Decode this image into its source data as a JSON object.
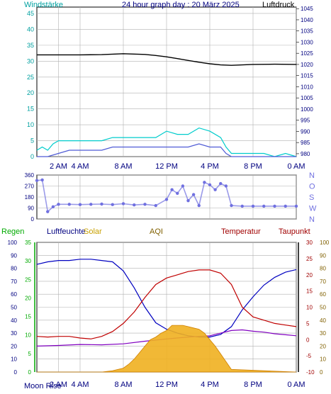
{
  "title": "24 hour graph day : 20 März 2025",
  "chart_data": [
    {
      "id": "wind_pressure",
      "type": "line",
      "left_label": "Windstärke",
      "right_label": "Luftdruck",
      "x_ticks": [
        "2 AM",
        "4 AM",
        "8 AM",
        "12 PM",
        "4 PM",
        "8 PM",
        "0 AM"
      ],
      "x_tick_hours": [
        2,
        4,
        8,
        12,
        16,
        20,
        24
      ],
      "x_range_hours": [
        0,
        24
      ],
      "left_ticks": [
        "0",
        "5",
        "10",
        "15",
        "20",
        "25",
        "30",
        "35",
        "40",
        "45"
      ],
      "left_range": [
        0,
        47
      ],
      "right_ticks": [
        "980",
        "985",
        "990",
        "995",
        "1000",
        "1005",
        "1010",
        "1015",
        "1020",
        "1025",
        "1030",
        "1035",
        "1040",
        "1045"
      ],
      "right_range": [
        978.7,
        1045.7
      ],
      "grid": true,
      "series": [
        {
          "name": "Luftdruck",
          "color": "#000000",
          "axis": "right",
          "x": [
            0,
            2,
            4,
            6,
            8,
            10,
            11,
            12,
            13,
            14,
            15,
            16,
            17,
            18,
            19,
            20,
            22,
            24
          ],
          "y": [
            1024.3,
            1024.3,
            1024.3,
            1024.4,
            1024.8,
            1024.5,
            1024.0,
            1023.4,
            1022.6,
            1021.8,
            1021.0,
            1020.3,
            1019.8,
            1019.6,
            1019.8,
            1020.0,
            1020.1,
            1020.0
          ]
        },
        {
          "name": "Windböen",
          "color": "#00cccc",
          "axis": "left",
          "x": [
            0,
            0.5,
            1,
            1.5,
            2,
            3,
            4,
            5,
            6,
            7,
            8,
            9,
            10,
            11,
            12,
            13,
            14,
            15,
            16,
            17,
            17.5,
            18,
            19,
            20,
            21,
            22,
            23,
            24
          ],
          "y": [
            2,
            3,
            2,
            4,
            5,
            5,
            5,
            5,
            5,
            6,
            6,
            6,
            6,
            6,
            8,
            7,
            7,
            9,
            8,
            6,
            3,
            1,
            1,
            1,
            1,
            0,
            1,
            0
          ]
        },
        {
          "name": "Windgeschwindigkeit",
          "color": "#4f5bd5",
          "axis": "left",
          "x": [
            0,
            1,
            2,
            3,
            4,
            5,
            6,
            7,
            8,
            9,
            10,
            11,
            12,
            13,
            14,
            15,
            16,
            17,
            17.5,
            18,
            24
          ],
          "y": [
            0,
            0,
            1,
            2,
            2,
            2,
            2,
            3,
            3,
            3,
            3,
            3,
            3,
            3,
            3,
            4,
            3,
            3,
            1,
            0,
            0
          ]
        }
      ]
    },
    {
      "id": "wind_direction",
      "type": "scatter",
      "x_range_hours": [
        0,
        24
      ],
      "left_ticks": [
        "0",
        "90",
        "180",
        "270",
        "360"
      ],
      "left_range": [
        0,
        360
      ],
      "right_ticks": [
        "N",
        "W",
        "S",
        "O",
        "N"
      ],
      "grid": true,
      "series": [
        {
          "name": "Windrichtung",
          "color": "#7070e0",
          "x": [
            0,
            0.5,
            1,
            1.5,
            2,
            3,
            4,
            5,
            6,
            7,
            8,
            9,
            10,
            11,
            12,
            12.5,
            13,
            13.5,
            14,
            14.5,
            15,
            15.5,
            16,
            16.5,
            17,
            17.5,
            18,
            19,
            20,
            21,
            22,
            23,
            24
          ],
          "y": [
            315,
            320,
            60,
            100,
            120,
            120,
            118,
            120,
            122,
            118,
            125,
            115,
            120,
            110,
            160,
            240,
            210,
            270,
            150,
            200,
            110,
            300,
            280,
            240,
            290,
            270,
            110,
            105,
            105,
            105,
            105,
            105,
            105
          ]
        }
      ]
    },
    {
      "id": "climate",
      "type": "line",
      "labels": [
        "Regen",
        "Luftfeuchte",
        "Solar",
        "AQI",
        "Temperatur",
        "Taupunkt"
      ],
      "label_colors": [
        "#00aa00",
        "#000080",
        "#c8a000",
        "#806000",
        "#a00000",
        "#8000a0"
      ],
      "moon_label": "Moon Rise",
      "x_ticks": [
        "2 AM",
        "4 AM",
        "8 AM",
        "12 PM",
        "4 PM",
        "8 PM",
        "0 AM"
      ],
      "x_tick_hours": [
        2,
        4,
        8,
        12,
        16,
        20,
        24
      ],
      "x_range_hours": [
        0,
        24
      ],
      "humidity_ticks": [
        "0",
        "10",
        "20",
        "30",
        "40",
        "50",
        "60",
        "70",
        "80",
        "90",
        "100"
      ],
      "rain_ticks": [
        "0",
        "5",
        "10",
        "15",
        "20",
        "25",
        "30",
        "35"
      ],
      "temp_ticks": [
        "-10",
        "-5",
        "0",
        "5",
        "10",
        "15",
        "20",
        "25",
        "30"
      ],
      "aqi_ticks": [
        "0",
        "10",
        "20",
        "30",
        "40",
        "50",
        "60",
        "70",
        "80",
        "90",
        "100"
      ],
      "humidity_range": [
        0,
        100
      ],
      "temp_range": [
        -10,
        30
      ],
      "solar_range": [
        0,
        100
      ],
      "grid": true,
      "series": [
        {
          "name": "Luftfeuchte",
          "color": "#0000c0",
          "x": [
            0,
            1,
            2,
            3,
            4,
            5,
            6,
            7,
            8,
            9,
            10,
            11,
            12,
            13,
            14,
            15,
            16,
            17,
            18,
            19,
            20,
            21,
            22,
            23,
            24
          ],
          "y": [
            83,
            85,
            86,
            86,
            87,
            87,
            86,
            85,
            78,
            65,
            50,
            38,
            33,
            30,
            28,
            27,
            27,
            29,
            35,
            48,
            58,
            67,
            73,
            77,
            79
          ]
        },
        {
          "name": "Temperatur",
          "color": "#c00000",
          "x": [
            0,
            1,
            2,
            3,
            4,
            5,
            6,
            7,
            8,
            9,
            10,
            11,
            12,
            13,
            14,
            15,
            16,
            17,
            18,
            19,
            20,
            21,
            22,
            23,
            24
          ],
          "y": [
            1.0,
            0.8,
            1.0,
            1.0,
            0.5,
            0.2,
            1.0,
            2.5,
            5.0,
            8.5,
            13.0,
            17.0,
            19.0,
            20.0,
            21.0,
            21.5,
            21.5,
            20.5,
            17.0,
            10.0,
            7.0,
            6.0,
            5.0,
            4.5,
            4.0
          ]
        },
        {
          "name": "Taupunkt",
          "color": "#8000c0",
          "x": [
            0,
            2,
            4,
            6,
            8,
            10,
            12,
            14,
            16,
            17,
            18,
            19,
            20,
            21,
            22,
            23,
            24
          ],
          "y": [
            -2.0,
            -1.8,
            -1.5,
            -1.6,
            -1.3,
            -0.5,
            0.2,
            0.8,
            1.2,
            2.0,
            2.8,
            3.0,
            2.6,
            2.3,
            1.8,
            1.5,
            1.2
          ]
        },
        {
          "name": "Solar",
          "color": "#e8a000",
          "x": [
            0,
            6,
            7,
            8,
            8.5,
            9,
            9.5,
            10,
            10.5,
            11,
            11.5,
            12,
            12.5,
            13,
            13.5,
            14,
            14.5,
            15,
            15.5,
            16,
            16.5,
            17,
            17.5,
            18,
            24
          ],
          "y": [
            0,
            0,
            1,
            3,
            6,
            10,
            15,
            20,
            25,
            27,
            30,
            32,
            36,
            36,
            36,
            35,
            34,
            33,
            30,
            25,
            20,
            14,
            8,
            2,
            0
          ]
        }
      ]
    }
  ]
}
